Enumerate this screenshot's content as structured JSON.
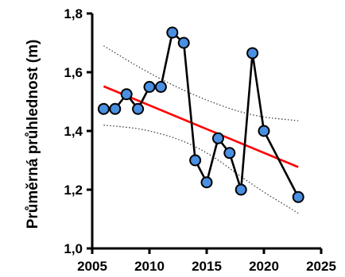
{
  "chart_data": {
    "type": "line",
    "title": "",
    "xlabel": "",
    "ylabel": "Průměrná průhlednost (m)",
    "xlim": [
      2005,
      2025
    ],
    "ylim": [
      1.0,
      1.8
    ],
    "xticks": [
      2005,
      2010,
      2015,
      2020,
      2025
    ],
    "xtick_labels": [
      "2005",
      "2010",
      "2015",
      "2020",
      "2025"
    ],
    "yticks": [
      1.0,
      1.2,
      1.4,
      1.6,
      1.8
    ],
    "ytick_labels": [
      "1,0",
      "1,2",
      "1,4",
      "1,6",
      "1,8"
    ],
    "grid": false,
    "legend": "none",
    "series": [
      {
        "x": [
          2006,
          2007,
          2008,
          2009,
          2010,
          2011,
          2012,
          2013,
          2014,
          2015,
          2016,
          2017,
          2018,
          2019,
          2020,
          2023
        ],
        "y": [
          1.475,
          1.475,
          1.525,
          1.475,
          1.55,
          1.55,
          1.735,
          1.7,
          1.3,
          1.225,
          1.375,
          1.325,
          1.2,
          1.665,
          1.4,
          1.175
        ],
        "marker_color": "#4a90e2",
        "line_color": "#000000"
      }
    ],
    "trend": {
      "x": [
        2006,
        2023
      ],
      "y": [
        1.552,
        1.277
      ],
      "color": "#ff0000"
    },
    "confidence_band": {
      "x": [
        2006,
        2010,
        2014.5,
        2019,
        2023
      ],
      "upper": [
        1.69,
        1.595,
        1.51,
        1.45,
        1.435
      ],
      "lower": [
        1.42,
        1.405,
        1.345,
        1.215,
        1.12
      ],
      "color": "#333333"
    }
  }
}
